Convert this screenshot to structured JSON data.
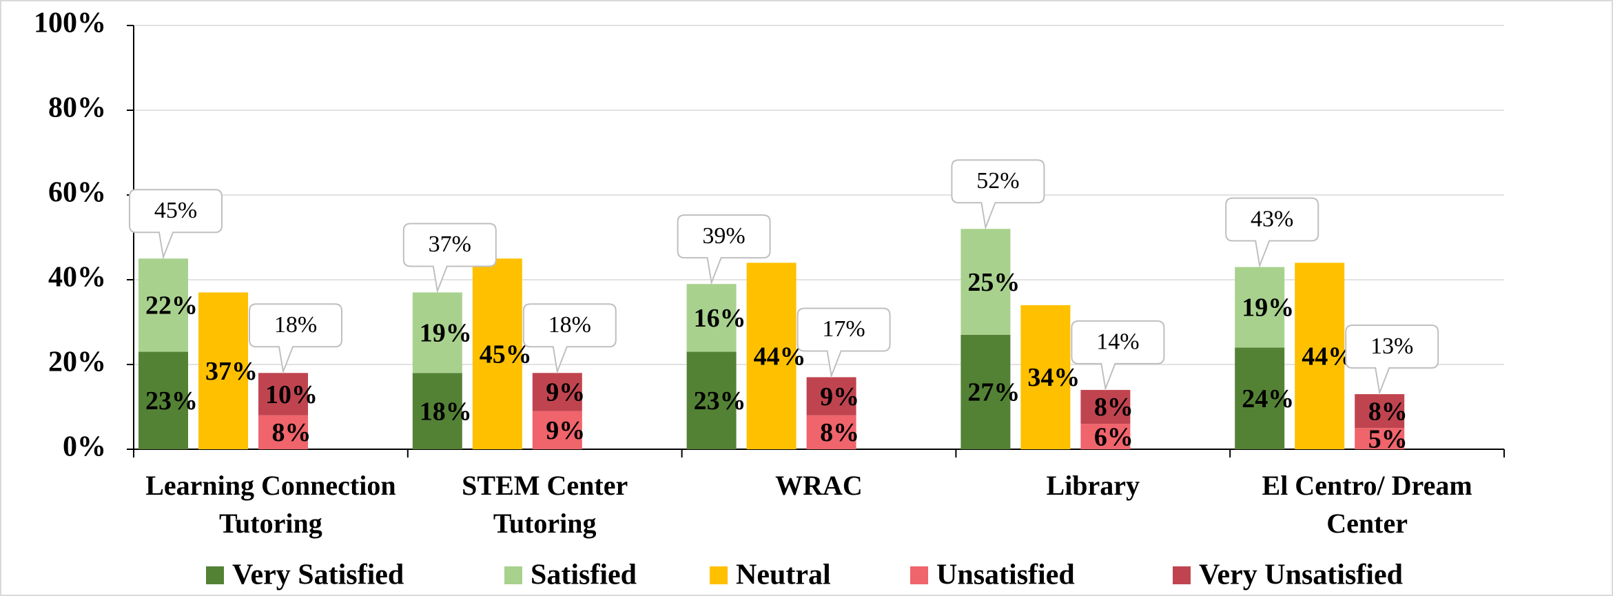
{
  "chart_data": {
    "type": "grouped_stacked_bar",
    "categories": [
      [
        "Learning Connection",
        "Tutoring"
      ],
      [
        "STEM Center",
        "Tutoring"
      ],
      [
        "WRAC"
      ],
      [
        "Library"
      ],
      [
        "El Centro/ Dream",
        "Center"
      ]
    ],
    "series": [
      {
        "name": "Very Satisfied",
        "color": "#548235",
        "stack": 0,
        "values": [
          23,
          18,
          23,
          27,
          24
        ],
        "value_labels": [
          "23%",
          "18%",
          "23%",
          "27%",
          "24%"
        ]
      },
      {
        "name": "Satisfied",
        "color": "#a9d18e",
        "stack": 0,
        "values": [
          22,
          19,
          16,
          25,
          19
        ],
        "value_labels": [
          "22%",
          "19%",
          "16%",
          "25%",
          "19%"
        ]
      },
      {
        "name": "Neutral",
        "color": "#ffc000",
        "stack": 1,
        "values": [
          37,
          45,
          44,
          34,
          44
        ],
        "value_labels": [
          "37%",
          "45%",
          "44%",
          "34%",
          "44%"
        ]
      },
      {
        "name": "Unsatisfied",
        "color": "#f0646c",
        "stack": 2,
        "values": [
          8,
          9,
          8,
          6,
          5
        ],
        "value_labels": [
          "8%",
          "9%",
          "8%",
          "6%",
          "5%"
        ]
      },
      {
        "name": "Very Unsatisfied",
        "color": "#c0444f",
        "stack": 2,
        "values": [
          10,
          9,
          9,
          8,
          8
        ],
        "value_labels": [
          "10%",
          "9%",
          "9%",
          "8%",
          "8%"
        ]
      }
    ],
    "stack_totals": [
      {
        "stack": 0,
        "values": [
          45,
          37,
          39,
          52,
          43
        ],
        "value_labels": [
          "45%",
          "37%",
          "39%",
          "52%",
          "43%"
        ]
      },
      {
        "stack": 2,
        "values": [
          18,
          18,
          17,
          14,
          13
        ],
        "value_labels": [
          "18%",
          "18%",
          "17%",
          "14%",
          "13%"
        ]
      }
    ],
    "ylim": [
      0,
      100
    ],
    "yticks": [
      {
        "value": 0,
        "label": "0%"
      },
      {
        "value": 20,
        "label": "20%"
      },
      {
        "value": 40,
        "label": "40%"
      },
      {
        "value": 60,
        "label": "60%"
      },
      {
        "value": 80,
        "label": "80%"
      },
      {
        "value": 100,
        "label": "100%"
      }
    ],
    "grid": true,
    "legend": "bottom"
  }
}
